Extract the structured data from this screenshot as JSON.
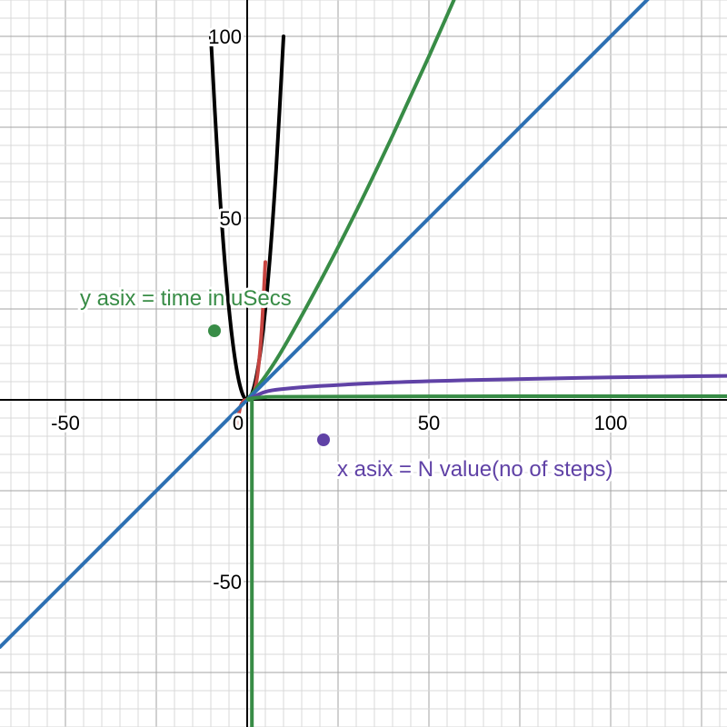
{
  "chart_data": {
    "type": "line",
    "xlim": [
      -68,
      132
    ],
    "ylim": [
      -90,
      110
    ],
    "grid": true,
    "grid_minor_step": 5,
    "grid_major_step": 25,
    "x_tick_labels": [
      {
        "value": -50,
        "label": "-50"
      },
      {
        "value": 0,
        "label": "0"
      },
      {
        "value": 50,
        "label": "50"
      },
      {
        "value": 100,
        "label": "100"
      }
    ],
    "y_tick_labels": [
      {
        "value": 100,
        "label": "100"
      },
      {
        "value": 50,
        "label": "50"
      },
      {
        "value": -50,
        "label": "-50"
      }
    ],
    "series": [
      {
        "kind": "quadratic",
        "color": "#000000",
        "x": [
          -10,
          -8,
          -6,
          -4,
          -2,
          0,
          2,
          4,
          6,
          8,
          10
        ],
        "y": [
          100,
          64,
          36,
          16,
          4,
          0,
          4,
          16,
          36,
          64,
          100
        ]
      },
      {
        "kind": "odd-power",
        "color": "#c74440",
        "x": [
          -3,
          -2,
          -1,
          0,
          1,
          2,
          3,
          4,
          5
        ],
        "y": [
          -8.2,
          -2.4,
          -0.3,
          0,
          0.3,
          2.4,
          8.2,
          19.4,
          37.9
        ]
      },
      {
        "kind": "steep",
        "color": "#388c46",
        "x": [
          0,
          5,
          10,
          20,
          30,
          40,
          50,
          60
        ],
        "y": [
          0,
          6.5,
          14.3,
          32.4,
          51.9,
          72.7,
          94.5,
          117.1
        ]
      },
      {
        "kind": "linear",
        "color": "#2d70b3",
        "x": [
          -68,
          0,
          132
        ],
        "y": [
          -68,
          0,
          132
        ]
      },
      {
        "kind": "logarithmic",
        "color": "#6042a6",
        "x": [
          0.5,
          5,
          10,
          20,
          40,
          60,
          80,
          100,
          132
        ],
        "y": [
          0.2,
          2.2,
          3.0,
          3.8,
          4.8,
          5.4,
          5.8,
          6.2,
          6.6
        ]
      },
      {
        "kind": "near-flat",
        "color": "#388c46",
        "x": [
          0.5,
          5,
          10,
          50,
          100,
          132
        ],
        "y": [
          0.3,
          0.75,
          0.85,
          0.97,
          0.99,
          1.0
        ]
      },
      {
        "kind": "vertical-negative",
        "color": "#388c46",
        "x": [
          1,
          1.5,
          2,
          3,
          5
        ],
        "y": [
          -90,
          -90,
          -90,
          -90,
          -90
        ]
      }
    ],
    "annotations": [
      {
        "text": "y asix = time in uSecs",
        "color": "#388c46",
        "point": [
          -9,
          19
        ]
      },
      {
        "text": "x asix = N value(no of steps)",
        "color": "#6042a6",
        "point": [
          21,
          -11
        ]
      }
    ]
  }
}
